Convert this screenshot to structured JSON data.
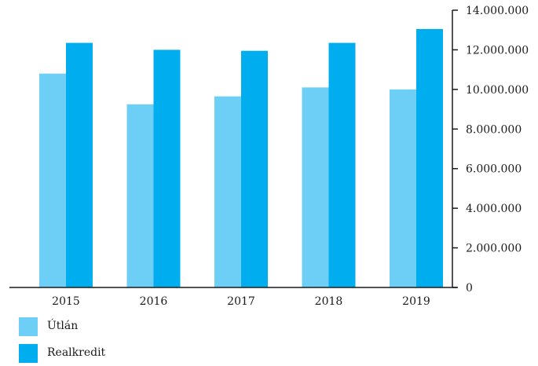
{
  "chart_data": {
    "type": "bar",
    "categories": [
      "2015",
      "2016",
      "2017",
      "2018",
      "2019"
    ],
    "series": [
      {
        "name": "Útlán",
        "color": "#6dcff6",
        "values": [
          10800000,
          9250000,
          9650000,
          10100000,
          10000000
        ]
      },
      {
        "name": "Realkredit",
        "color": "#00aeef",
        "values": [
          12350000,
          12000000,
          11950000,
          12350000,
          13050000
        ]
      }
    ],
    "ylim": [
      0,
      14000000
    ],
    "yticks": [
      0,
      2000000,
      4000000,
      6000000,
      8000000,
      10000000,
      12000000,
      14000000
    ],
    "ytick_labels": [
      "0",
      "2.000.000",
      "4.000.000",
      "6.000.000",
      "8.000.000",
      "10.000.000",
      "12.000.000",
      "14.000.000"
    ],
    "y_axis_side": "right",
    "grid": false,
    "legend_position": "bottom-left",
    "title": "",
    "xlabel": "",
    "ylabel": ""
  },
  "legend": {
    "items": [
      {
        "label": "Útlán",
        "color": "#6dcff6"
      },
      {
        "label": "Realkredit",
        "color": "#00aeef"
      }
    ]
  }
}
